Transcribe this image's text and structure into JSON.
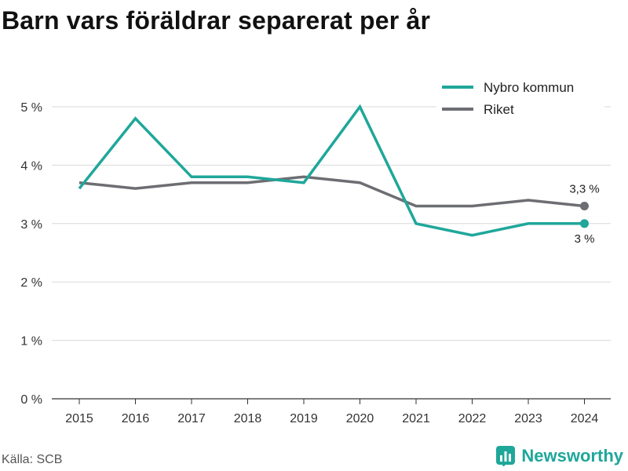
{
  "title": "Barn vars föräldrar separerat per år",
  "source": "Källa: SCB",
  "brand": "Newsworthy",
  "colors": {
    "accent": "#1fa79a",
    "riket": "#6d6e73",
    "grid": "#d9d9d9",
    "axis": "#333333"
  },
  "chart_data": {
    "type": "line",
    "x": [
      "2015",
      "2016",
      "2017",
      "2018",
      "2019",
      "2020",
      "2021",
      "2022",
      "2023",
      "2024"
    ],
    "yticks": [
      "0 %",
      "1 %",
      "2 %",
      "3 %",
      "4 %",
      "5 %"
    ],
    "ylim": [
      0,
      5
    ],
    "grid": true,
    "legend_position": "top-right",
    "series": [
      {
        "name": "Nybro kommun",
        "color": "#1fa79a",
        "values": [
          3.6,
          4.8,
          3.8,
          3.8,
          3.7,
          5.0,
          3.0,
          2.8,
          3.0,
          3.0
        ],
        "end_label": "3 %"
      },
      {
        "name": "Riket",
        "color": "#6d6e73",
        "values": [
          3.7,
          3.6,
          3.7,
          3.7,
          3.8,
          3.7,
          3.3,
          3.3,
          3.4,
          3.3
        ],
        "end_label": "3,3 %"
      }
    ]
  }
}
